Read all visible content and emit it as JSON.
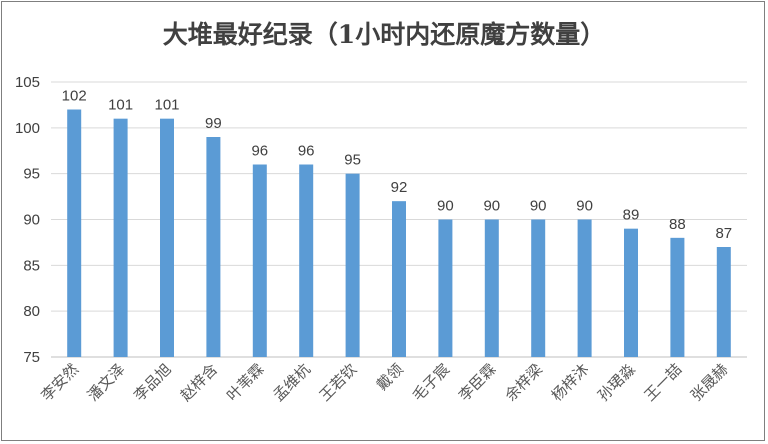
{
  "chart_data": {
    "type": "bar",
    "title": "大堆最好纪录（1小时内还原魔方数量）",
    "categories": [
      "李安然",
      "潘文泽",
      "李品旭",
      "赵梓含",
      "叶苇霖",
      "孟维杭",
      "王若钦",
      "戴领",
      "毛子宸",
      "李臣霖",
      "余梓梁",
      "杨梓沐",
      "孙珺淼",
      "王一喆",
      "张晟赫"
    ],
    "values": [
      102,
      101,
      101,
      99,
      96,
      96,
      95,
      92,
      90,
      90,
      90,
      90,
      89,
      88,
      87
    ],
    "xlabel": "",
    "ylabel": "",
    "ylim": [
      75,
      105
    ],
    "yticks": [
      75,
      80,
      85,
      90,
      95,
      100,
      105
    ],
    "grid": true,
    "legend": "none",
    "bar_color": "#5B9BD5",
    "grid_color": "#d9d9d9"
  }
}
